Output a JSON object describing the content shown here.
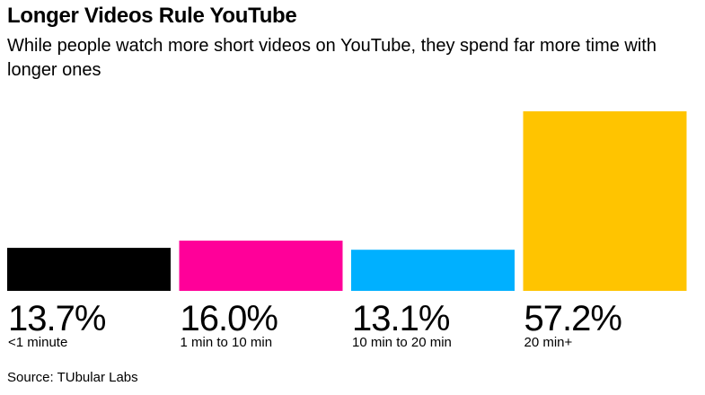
{
  "header": {
    "title": "Longer Videos Rule YouTube",
    "subtitle": "While people watch more short videos on YouTube, they spend far more time with longer ones"
  },
  "footer": {
    "source": "Source: TUbular Labs"
  },
  "chart_data": {
    "type": "bar",
    "title": "Longer Videos Rule YouTube",
    "subtitle": "While people watch more short videos on YouTube, they spend far more time with longer ones",
    "categories": [
      "<1 minute",
      "1 min to 10 min",
      "10 min to 20 min",
      "20 min+"
    ],
    "values": [
      13.7,
      16.0,
      13.1,
      57.2
    ],
    "value_labels": [
      "13.7%",
      "16.0%",
      "13.1%",
      "57.2%"
    ],
    "colors": [
      "#000000",
      "#ff0099",
      "#00b0ff",
      "#ffc400"
    ],
    "ylim": [
      0,
      57.2
    ],
    "grid": false,
    "legend": "none"
  }
}
